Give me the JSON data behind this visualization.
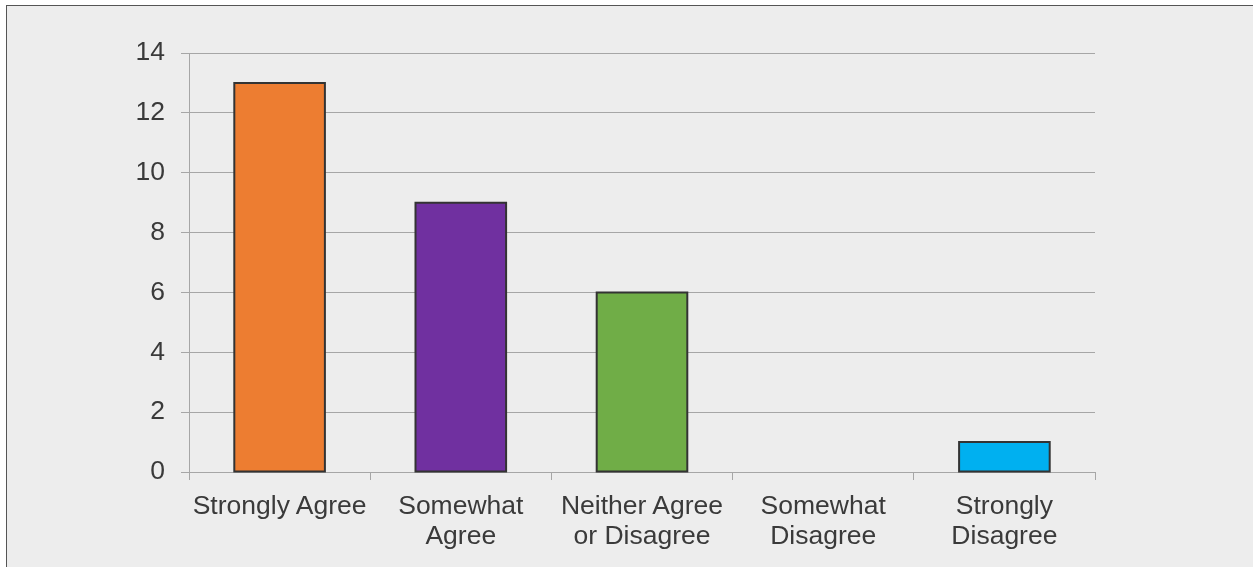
{
  "chart_data": {
    "type": "bar",
    "categories": [
      "Strongly Agree",
      "Somewhat Agree",
      "Neither Agree or Disagree",
      "Somewhat Disagree",
      "Strongly Disagree"
    ],
    "values": [
      13,
      9,
      6,
      0,
      1
    ],
    "colors": [
      "#ed7d31",
      "#7030a0",
      "#70ad47",
      null,
      "#00b0f0"
    ],
    "ylim": [
      0,
      14
    ],
    "yticks": [
      0,
      2,
      4,
      6,
      8,
      10,
      12,
      14
    ],
    "grid": "y",
    "legend": false
  }
}
